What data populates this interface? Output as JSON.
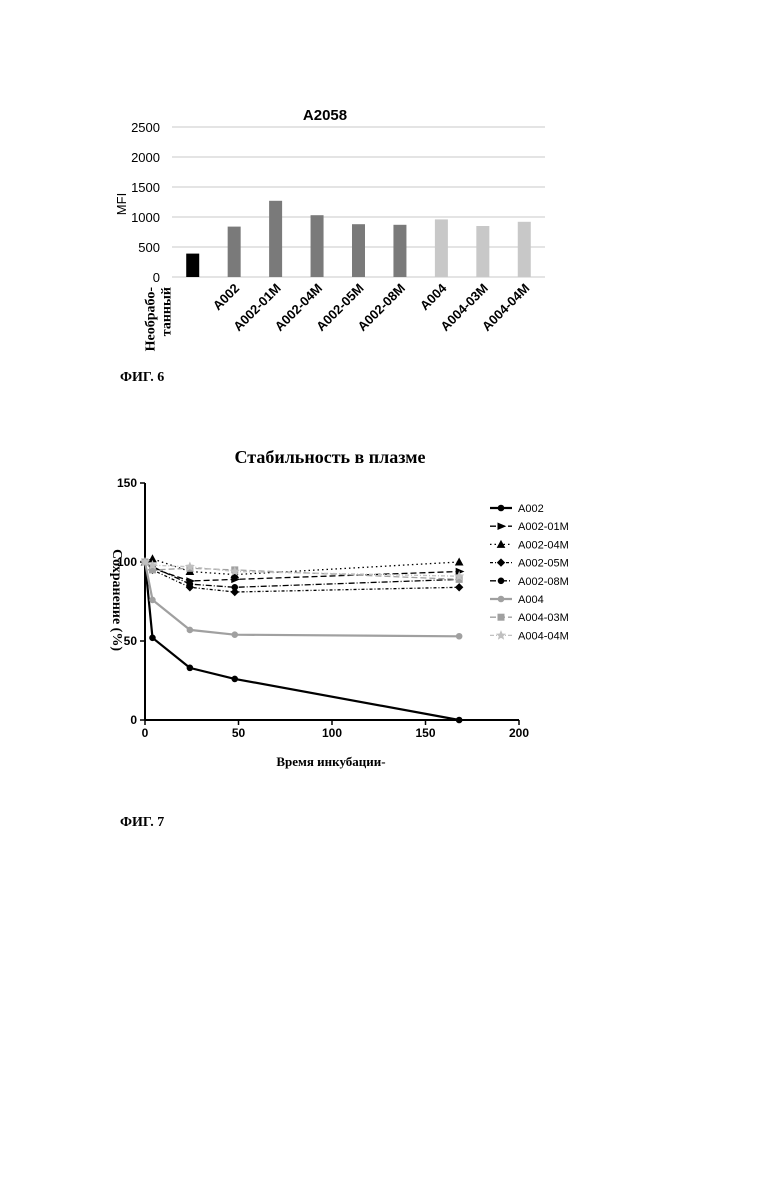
{
  "figures": {
    "fig6_caption": "ФИГ. 6",
    "fig7_caption": "ФИГ. 7"
  },
  "chart_data": [
    {
      "type": "bar",
      "title": "A2058",
      "ylabel": "MFI",
      "xlabel": "",
      "ylim": [
        0,
        2500
      ],
      "yticks": [
        "0",
        "500",
        "1000",
        "1500",
        "2000",
        "2500"
      ],
      "grid": true,
      "categories": [
        "Необрабо-\nтанный",
        "A002",
        "A002-01M",
        "A002-04M",
        "A002-05M",
        "A002-08M",
        "A004",
        "A004-03M",
        "A004-04M"
      ],
      "category_lines": [
        [
          "Необрабо-",
          "танный"
        ],
        [
          "A002"
        ],
        [
          "A002-01M"
        ],
        [
          "A002-04M"
        ],
        [
          "A002-05M"
        ],
        [
          "A002-08M"
        ],
        [
          "A004"
        ],
        [
          "A004-03M"
        ],
        [
          "A004-04M"
        ]
      ],
      "values": [
        390,
        840,
        1270,
        1030,
        880,
        870,
        960,
        850,
        920
      ],
      "colors": [
        "#000000",
        "#7a7a7a",
        "#7a7a7a",
        "#7a7a7a",
        "#7a7a7a",
        "#7a7a7a",
        "#c8c8c8",
        "#c8c8c8",
        "#c8c8c8"
      ]
    },
    {
      "type": "line",
      "title": "Стабильность в плазме",
      "xlabel": "Время инкубации-",
      "ylabel": "Сохранение (%)",
      "xlim": [
        0,
        200
      ],
      "ylim": [
        0,
        150
      ],
      "xticks": [
        "0",
        "50",
        "100",
        "150",
        "200"
      ],
      "yticks": [
        "0",
        "50",
        "100",
        "150"
      ],
      "legend_position": "right",
      "series": [
        {
          "name": "A002",
          "color": "#000000",
          "dash": "",
          "marker": "circle",
          "x": [
            0,
            4,
            24,
            48,
            168
          ],
          "y": [
            100,
            52,
            33,
            26,
            0
          ]
        },
        {
          "name": "A002-01M",
          "color": "#000000",
          "dash": "6,3",
          "marker": "triangle-right",
          "x": [
            0,
            4,
            24,
            48,
            168
          ],
          "y": [
            100,
            96,
            88,
            89,
            94
          ]
        },
        {
          "name": "A002-04M",
          "color": "#000000",
          "dash": "1.5,3",
          "marker": "triangle",
          "x": [
            0,
            4,
            24,
            48,
            168
          ],
          "y": [
            100,
            102,
            94,
            92,
            100
          ]
        },
        {
          "name": "A002-05M",
          "color": "#000000",
          "dash": "3,2,1,2",
          "marker": "diamond",
          "x": [
            0,
            4,
            24,
            48,
            168
          ],
          "y": [
            100,
            95,
            84,
            81,
            84
          ]
        },
        {
          "name": "A002-08M",
          "color": "#000000",
          "dash": "6,2,1,2",
          "marker": "circle",
          "x": [
            0,
            4,
            24,
            48,
            168
          ],
          "y": [
            100,
            97,
            86,
            84,
            89
          ]
        },
        {
          "name": "A004",
          "color": "#a0a0a0",
          "dash": "",
          "marker": "circle",
          "x": [
            0,
            4,
            24,
            48,
            168
          ],
          "y": [
            100,
            76,
            57,
            54,
            53
          ]
        },
        {
          "name": "A004-03M",
          "color": "#a0a0a0",
          "dash": "6,3",
          "marker": "square",
          "x": [
            0,
            4,
            24,
            48,
            168
          ],
          "y": [
            100,
            95,
            96,
            95,
            89
          ]
        },
        {
          "name": "A004-04M",
          "color": "#c0c0c0",
          "dash": "4,2,1,2",
          "marker": "star",
          "x": [
            0,
            4,
            24,
            48,
            168
          ],
          "y": [
            100,
            98,
            97,
            94,
            91
          ]
        }
      ]
    }
  ]
}
